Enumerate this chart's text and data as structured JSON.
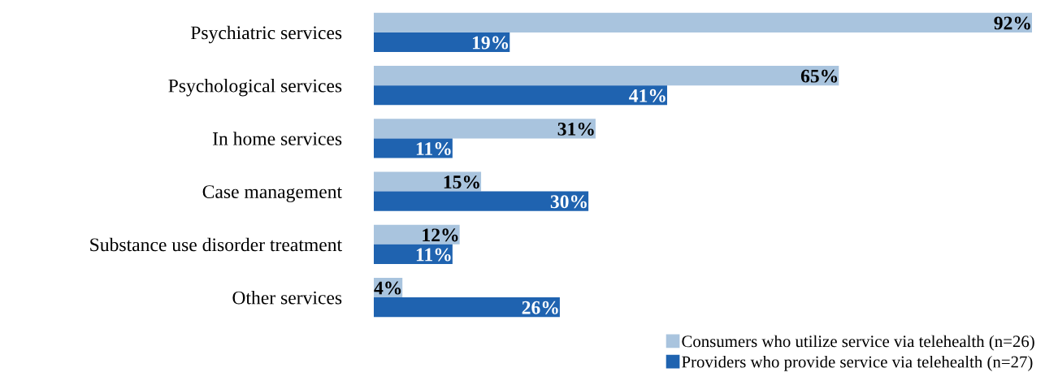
{
  "chart_data": {
    "type": "bar",
    "orientation": "horizontal",
    "categories": [
      "Psychiatric services",
      "Psychological services",
      "In home services",
      "Case management",
      "Substance use disorder treatment",
      "Other services"
    ],
    "tick_labels": "y",
    "grid": false,
    "legend": "bottom right",
    "series": [
      {
        "name": "Consumers who utilize service via telehealth (n=26)",
        "color": "#a9c4de",
        "values": [
          92,
          65,
          31,
          15,
          12,
          4
        ],
        "value_labels": [
          "92%",
          "65%",
          "31%",
          "15%",
          "12%",
          "4%"
        ]
      },
      {
        "name": "Providers who provide service via telehealth (n=27)",
        "color": "#1f63b0",
        "values": [
          19,
          41,
          11,
          30,
          11,
          26
        ],
        "value_labels": [
          "19%",
          "41%",
          "11%",
          "30%",
          "11%",
          "26%"
        ]
      }
    ]
  }
}
